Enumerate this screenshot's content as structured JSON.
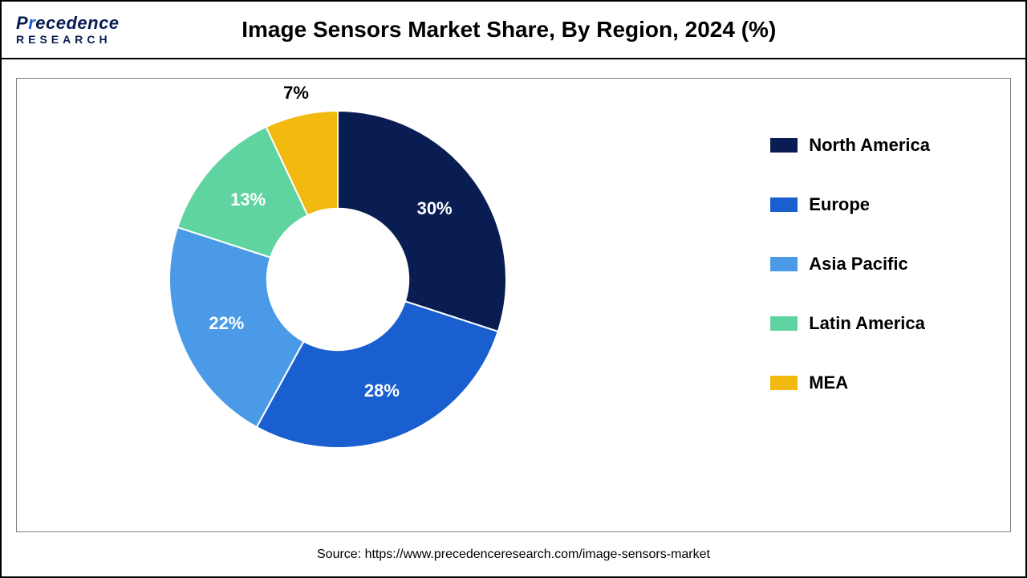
{
  "logo": {
    "line1_pre": "P",
    "line1_accent": "r",
    "line1_post": "ecedence",
    "line2": "RESEARCH"
  },
  "title": "Image Sensors Market Share, By Region, 2024 (%)",
  "source": "Source: https://www.precedenceresearch.com/image-sensors-market",
  "chart": {
    "type": "donut",
    "inner_radius_ratio": 0.42,
    "label_fontsize": 22,
    "label_fontweight": 700,
    "legend_fontsize": 22,
    "legend_fontweight": 700,
    "background_color": "#ffffff",
    "slices": [
      {
        "label": "North America",
        "value": 30,
        "display": "30%",
        "color": "#0a1d52"
      },
      {
        "label": "Europe",
        "value": 28,
        "display": "28%",
        "color": "#1a5fd0"
      },
      {
        "label": "Asia Pacific",
        "value": 22,
        "display": "22%",
        "color": "#4a9ae8"
      },
      {
        "label": "Latin America",
        "value": 13,
        "display": "13%",
        "color": "#5fd4a0"
      },
      {
        "label": "MEA",
        "value": 7,
        "display": "7%",
        "color": "#f2b90f",
        "outside": true
      }
    ]
  }
}
